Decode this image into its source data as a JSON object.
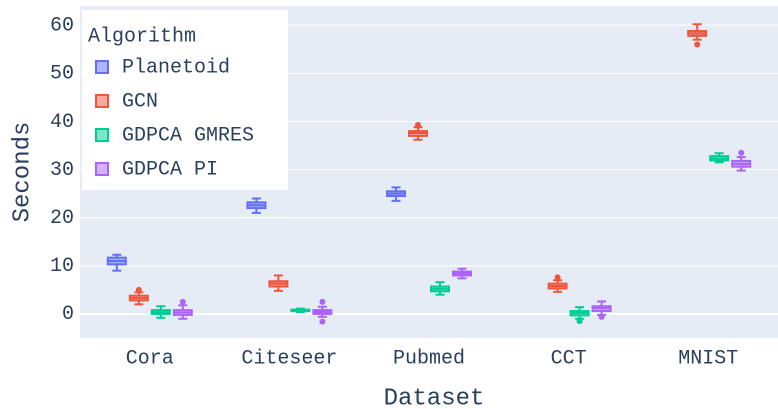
{
  "chart_data": {
    "type": "box",
    "xlabel": "Dataset",
    "ylabel": "Seconds",
    "legend_title": "Algorithm",
    "legend": "top-left",
    "grid": true,
    "categories": [
      "Cora",
      "Citeseer",
      "Pubmed",
      "CCT",
      "MNIST"
    ],
    "ylim": [
      -5,
      64
    ],
    "yticks": [
      0,
      10,
      20,
      30,
      40,
      50,
      60
    ],
    "series": [
      {
        "name": "Planetoid",
        "color": "#636efa",
        "boxes": [
          {
            "min": 9,
            "q1": 10.3,
            "median": 11,
            "q3": 11.7,
            "max": 12.3,
            "outliers": []
          },
          {
            "min": 21,
            "q1": 22,
            "median": 22.6,
            "q3": 23.2,
            "max": 24,
            "outliers": []
          },
          {
            "min": 23.5,
            "q1": 24.5,
            "median": 25,
            "q3": 25.5,
            "max": 26.3,
            "outliers": []
          },
          null,
          null
        ]
      },
      {
        "name": "GCN",
        "color": "#EF553B",
        "boxes": [
          {
            "min": 2,
            "q1": 2.8,
            "median": 3.3,
            "q3": 3.8,
            "max": 4.5,
            "outliers": [
              5
            ]
          },
          {
            "min": 4.8,
            "q1": 5.7,
            "median": 6.3,
            "q3": 6.8,
            "max": 8,
            "outliers": []
          },
          {
            "min": 36.2,
            "q1": 37,
            "median": 37.6,
            "q3": 38,
            "max": 38.8,
            "outliers": [
              39.3
            ]
          },
          {
            "min": 4.6,
            "q1": 5.3,
            "median": 5.8,
            "q3": 6.3,
            "max": 7,
            "outliers": [
              7.6
            ]
          },
          {
            "min": 57,
            "q1": 57.8,
            "median": 58.3,
            "q3": 58.8,
            "max": 60.2,
            "outliers": [
              56
            ]
          }
        ]
      },
      {
        "name": "GDPCA GMRES",
        "color": "#00cc96",
        "boxes": [
          {
            "min": -0.8,
            "q1": 0,
            "median": 0.4,
            "q3": 0.8,
            "max": 1.6,
            "outliers": []
          },
          {
            "min": 0.4,
            "q1": 0.6,
            "median": 0.7,
            "q3": 0.9,
            "max": 1.1,
            "outliers": []
          },
          {
            "min": 4,
            "q1": 4.7,
            "median": 5.2,
            "q3": 5.7,
            "max": 6.6,
            "outliers": []
          },
          {
            "min": -1,
            "q1": -0.3,
            "median": 0.2,
            "q3": 0.6,
            "max": 1.4,
            "outliers": [
              -1.5
            ]
          },
          {
            "min": 31.5,
            "q1": 31.9,
            "median": 32.3,
            "q3": 32.8,
            "max": 33.4,
            "outliers": []
          }
        ]
      },
      {
        "name": "GDPCA PI",
        "color": "#ab63fa",
        "boxes": [
          {
            "min": -1,
            "q1": -0.2,
            "median": 0.3,
            "q3": 0.8,
            "max": 1.8,
            "outliers": [
              2.5
            ]
          },
          {
            "min": -0.6,
            "q1": 0,
            "median": 0.4,
            "q3": 0.8,
            "max": 1.5,
            "outliers": [
              -1.6,
              2.5
            ]
          },
          {
            "min": 7.4,
            "q1": 8,
            "median": 8.4,
            "q3": 8.8,
            "max": 9.4,
            "outliers": []
          },
          {
            "min": -0.2,
            "q1": 0.6,
            "median": 1.2,
            "q3": 1.6,
            "max": 2.6,
            "outliers": [
              -0.6
            ]
          },
          {
            "min": 29.8,
            "q1": 30.6,
            "median": 31.2,
            "q3": 31.8,
            "max": 32.6,
            "outliers": [
              33.5
            ]
          }
        ]
      }
    ]
  }
}
